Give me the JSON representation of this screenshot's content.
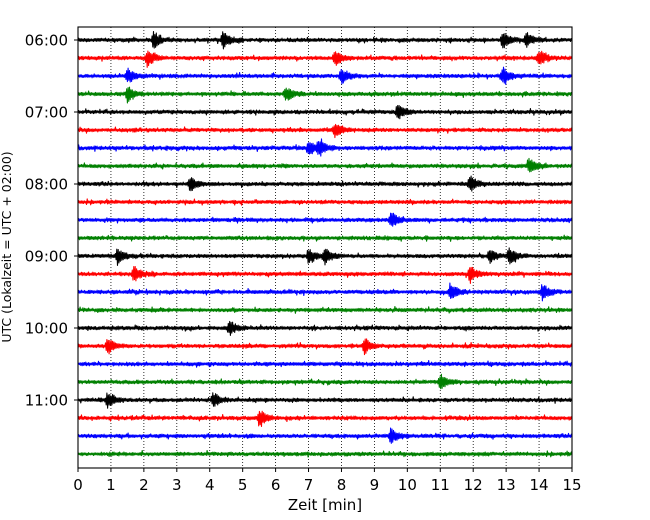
{
  "chart_data": {
    "type": "line",
    "xlabel": "Zeit  [min]",
    "ylabel": "UTC (Lokalzeit = UTC + 02:00)",
    "xlim": [
      0,
      15
    ],
    "x_ticks": [
      0,
      1,
      2,
      3,
      4,
      5,
      6,
      7,
      8,
      9,
      10,
      11,
      12,
      13,
      14,
      15
    ],
    "y_ticks": [
      "06:00",
      "07:00",
      "08:00",
      "09:00",
      "10:00",
      "11:00"
    ],
    "grid": "vertical dotted",
    "trace_colors": [
      "#000000",
      "#ff0000",
      "#0000ff",
      "#008000"
    ],
    "traces": [
      {
        "start": "06:00",
        "color": "#000000",
        "events_min": [
          2.3,
          4.4,
          12.9,
          13.6
        ]
      },
      {
        "start": "06:15",
        "color": "#ff0000",
        "events_min": [
          2.1,
          7.8,
          14.0
        ]
      },
      {
        "start": "06:30",
        "color": "#0000ff",
        "events_min": [
          1.5,
          8.0,
          12.9
        ]
      },
      {
        "start": "06:45",
        "color": "#008000",
        "events_min": [
          1.5,
          6.3
        ]
      },
      {
        "start": "07:00",
        "color": "#000000",
        "events_min": [
          9.7
        ]
      },
      {
        "start": "07:15",
        "color": "#ff0000",
        "events_min": [
          7.8
        ]
      },
      {
        "start": "07:30",
        "color": "#0000ff",
        "events_min": [
          7.0,
          7.3
        ]
      },
      {
        "start": "07:45",
        "color": "#008000",
        "events_min": [
          13.7
        ]
      },
      {
        "start": "08:00",
        "color": "#000000",
        "events_min": [
          3.4,
          11.9
        ]
      },
      {
        "start": "08:15",
        "color": "#ff0000",
        "events_min": []
      },
      {
        "start": "08:30",
        "color": "#0000ff",
        "events_min": [
          9.5
        ]
      },
      {
        "start": "08:45",
        "color": "#008000",
        "events_min": []
      },
      {
        "start": "09:00",
        "color": "#000000",
        "events_min": [
          1.2,
          7.0,
          7.5,
          12.5,
          13.1
        ]
      },
      {
        "start": "09:15",
        "color": "#ff0000",
        "events_min": [
          1.7,
          11.9
        ]
      },
      {
        "start": "09:30",
        "color": "#0000ff",
        "events_min": [
          11.3,
          14.1
        ]
      },
      {
        "start": "09:45",
        "color": "#008000",
        "events_min": []
      },
      {
        "start": "10:00",
        "color": "#000000",
        "events_min": [
          4.6
        ]
      },
      {
        "start": "10:15",
        "color": "#ff0000",
        "events_min": [
          0.9,
          8.7
        ]
      },
      {
        "start": "10:30",
        "color": "#0000ff",
        "events_min": []
      },
      {
        "start": "10:45",
        "color": "#008000",
        "events_min": [
          11.0
        ]
      },
      {
        "start": "11:00",
        "color": "#000000",
        "events_min": [
          0.9,
          4.1
        ]
      },
      {
        "start": "11:15",
        "color": "#ff0000",
        "events_min": [
          5.5
        ]
      },
      {
        "start": "11:30",
        "color": "#0000ff",
        "events_min": [
          9.5
        ]
      },
      {
        "start": "11:45",
        "color": "#008000",
        "events_min": []
      }
    ]
  }
}
